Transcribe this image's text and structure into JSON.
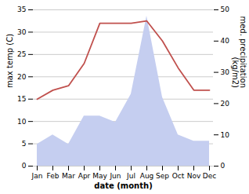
{
  "chart_data": {
    "type": "line",
    "categories": [
      "Jan",
      "Feb",
      "Mar",
      "Apr",
      "May",
      "Jun",
      "Jul",
      "Aug",
      "Sep",
      "Oct",
      "Nov",
      "Dec"
    ],
    "xlabel": "date (month)",
    "ylabel": "max temp (C)",
    "y2label": "med. precipitation\n(kg/m2)",
    "ylim": [
      0,
      35
    ],
    "yticks": [
      0,
      5,
      10,
      15,
      20,
      25,
      30,
      35
    ],
    "y2lim": [
      0,
      50
    ],
    "y2ticks": [
      0,
      10,
      20,
      30,
      40,
      50
    ],
    "grid": true,
    "series": [
      {
        "type": "area",
        "axis": "y2",
        "color": "#c5cef0",
        "values": [
          7,
          10,
          7,
          16,
          16,
          14,
          23,
          48,
          22,
          10,
          8,
          8
        ]
      },
      {
        "type": "line",
        "color": "#c0504d",
        "values": [
          15,
          17,
          18,
          23,
          32,
          32,
          32,
          32.5,
          28,
          22,
          17,
          17
        ]
      }
    ]
  }
}
